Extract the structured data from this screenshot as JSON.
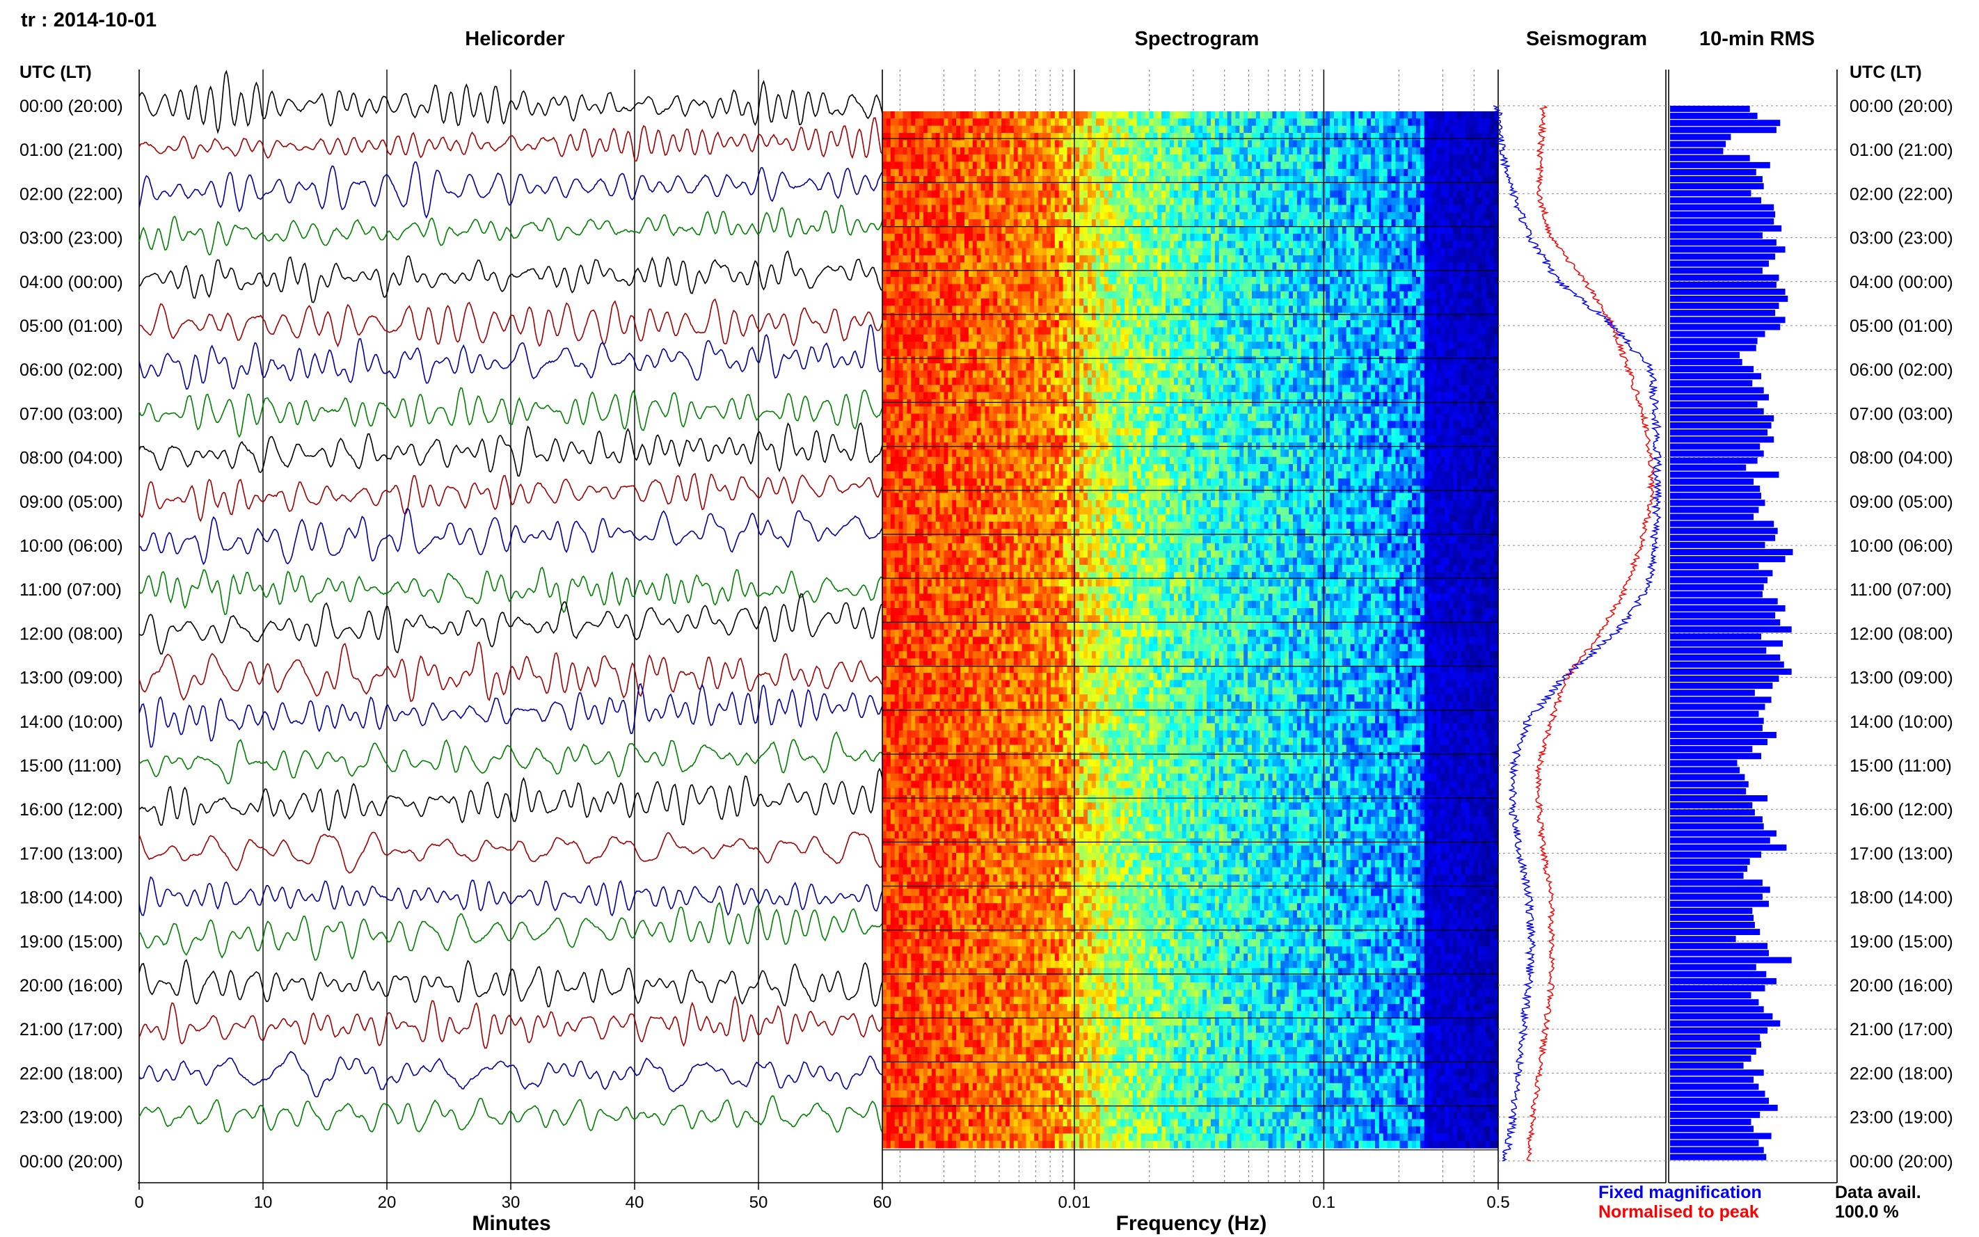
{
  "header": {
    "station_date": "tr : 2014-10-01",
    "utc_label_left": "UTC (LT)",
    "utc_label_right": "UTC (LT)"
  },
  "panels": {
    "helicorder": "Helicorder",
    "spectrogram": "Spectrogram",
    "seismogram": "Seismogram",
    "rms": "10-min RMS"
  },
  "axes": {
    "helicorder_xlabel": "Minutes",
    "helicorder_ticks": [
      "0",
      "10",
      "20",
      "30",
      "40",
      "50",
      "60"
    ],
    "spectrogram_xlabel": "Frequency (Hz)",
    "spectrogram_ticks": [
      "0.01",
      "0.1",
      "0.5"
    ]
  },
  "time_labels": [
    "00:00 (20:00)",
    "01:00 (21:00)",
    "02:00 (22:00)",
    "03:00 (23:00)",
    "04:00 (00:00)",
    "05:00 (01:00)",
    "06:00 (02:00)",
    "07:00 (03:00)",
    "08:00 (04:00)",
    "09:00 (05:00)",
    "10:00 (06:00)",
    "11:00 (07:00)",
    "12:00 (08:00)",
    "13:00 (09:00)",
    "14:00 (10:00)",
    "15:00 (11:00)",
    "16:00 (12:00)",
    "17:00 (13:00)",
    "18:00 (14:00)",
    "19:00 (15:00)",
    "20:00 (16:00)",
    "21:00 (17:00)",
    "22:00 (18:00)",
    "23:00 (19:00)",
    "00:00 (20:00)"
  ],
  "legend": {
    "fixed": "Fixed magnification",
    "normalised": "Normalised to peak",
    "fixed_color": "#0000ff",
    "normalised_color": "#ff0000"
  },
  "availability": {
    "label": "Data avail.",
    "value": "100.0 %"
  },
  "chart_data": {
    "type": "helicorder",
    "helicorder": {
      "x_range_minutes": [
        0,
        60
      ],
      "trace_colors": [
        "#000000",
        "#a00000",
        "#0000a0",
        "#008000"
      ],
      "hours": 24
    },
    "spectrogram": {
      "x_scale": "log",
      "x_range_hz": [
        0.0017,
        0.5
      ],
      "colormap": "jet",
      "colormap_colors": [
        "#00008b",
        "#0000ff",
        "#0080ff",
        "#00ffff",
        "#80ff80",
        "#ffff00",
        "#ff8000",
        "#ff0000"
      ]
    },
    "seismogram": {
      "fixed_magnification": [
        [
          0.0,
          -0.05
        ],
        [
          1.0,
          -0.02
        ],
        [
          2.0,
          0.05
        ],
        [
          3.0,
          0.16
        ],
        [
          4.0,
          0.35
        ],
        [
          5.0,
          0.7
        ],
        [
          6.0,
          0.95
        ],
        [
          7.0,
          0.98
        ],
        [
          8.0,
          0.99
        ],
        [
          9.0,
          0.99
        ],
        [
          10.0,
          0.97
        ],
        [
          11.0,
          0.93
        ],
        [
          12.0,
          0.72
        ],
        [
          13.0,
          0.38
        ],
        [
          14.0,
          0.15
        ],
        [
          15.0,
          0.05
        ],
        [
          16.0,
          0.05
        ],
        [
          17.0,
          0.1
        ],
        [
          18.0,
          0.15
        ],
        [
          19.0,
          0.17
        ],
        [
          20.0,
          0.15
        ],
        [
          21.0,
          0.12
        ],
        [
          22.0,
          0.08
        ],
        [
          23.0,
          0.05
        ],
        [
          24.0,
          0.0
        ]
      ],
      "normalised": [
        [
          0.0,
          0.25
        ],
        [
          1.0,
          0.23
        ],
        [
          2.0,
          0.22
        ],
        [
          3.0,
          0.3
        ],
        [
          4.0,
          0.52
        ],
        [
          5.0,
          0.7
        ],
        [
          6.0,
          0.8
        ],
        [
          7.0,
          0.9
        ],
        [
          8.0,
          0.95
        ],
        [
          9.0,
          0.95
        ],
        [
          10.0,
          0.88
        ],
        [
          11.0,
          0.78
        ],
        [
          12.0,
          0.62
        ],
        [
          13.0,
          0.4
        ],
        [
          14.0,
          0.3
        ],
        [
          15.0,
          0.22
        ],
        [
          16.0,
          0.22
        ],
        [
          17.0,
          0.25
        ],
        [
          18.0,
          0.3
        ],
        [
          19.0,
          0.3
        ],
        [
          20.0,
          0.3
        ],
        [
          21.0,
          0.26
        ],
        [
          22.0,
          0.22
        ],
        [
          23.0,
          0.18
        ],
        [
          24.0,
          0.15
        ]
      ]
    },
    "rms_10min": {
      "bar_color": "#0000ff",
      "values": [
        0.63,
        0.69,
        0.87,
        0.84,
        0.48,
        0.44,
        0.42,
        0.63,
        0.79,
        0.68,
        0.73,
        0.74,
        0.64,
        0.72,
        0.82,
        0.83,
        0.82,
        0.88,
        0.73,
        0.84,
        0.91,
        0.83,
        0.78,
        0.73,
        0.86,
        0.84,
        0.91,
        0.93,
        0.86,
        0.83,
        0.91,
        0.87,
        0.75,
        0.69,
        0.68,
        0.55,
        0.57,
        0.66,
        0.72,
        0.65,
        0.74,
        0.78,
        0.69,
        0.74,
        0.82,
        0.8,
        0.77,
        0.82,
        0.71,
        0.74,
        0.69,
        0.6,
        0.86,
        0.66,
        0.71,
        0.72,
        0.75,
        0.7,
        0.66,
        0.82,
        0.85,
        0.83,
        0.75,
        0.97,
        0.91,
        0.7,
        0.81,
        0.77,
        0.74,
        0.73,
        0.85,
        0.91,
        0.83,
        0.87,
        0.96,
        0.72,
        0.89,
        0.76,
        0.87,
        0.9,
        0.96,
        0.86,
        0.81,
        0.67,
        0.8,
        0.75,
        0.7,
        0.74,
        0.73,
        0.84,
        0.77,
        0.65,
        0.72,
        0.53,
        0.55,
        0.59,
        0.62,
        0.6,
        0.77,
        0.65,
        0.67,
        0.73,
        0.74,
        0.84,
        0.79,
        0.92,
        0.72,
        0.63,
        0.61,
        0.58,
        0.73,
        0.79,
        0.73,
        0.78,
        0.65,
        0.66,
        0.67,
        0.71,
        0.52,
        0.77,
        0.78,
        0.96,
        0.68,
        0.76,
        0.84,
        0.75,
        0.64,
        0.7,
        0.74,
        0.81,
        0.87,
        0.77,
        0.71,
        0.72,
        0.68,
        0.64,
        0.58,
        0.74,
        0.66,
        0.7,
        0.75,
        0.78,
        0.85,
        0.71,
        0.64,
        0.66,
        0.8,
        0.7,
        0.74,
        0.76
      ]
    }
  }
}
